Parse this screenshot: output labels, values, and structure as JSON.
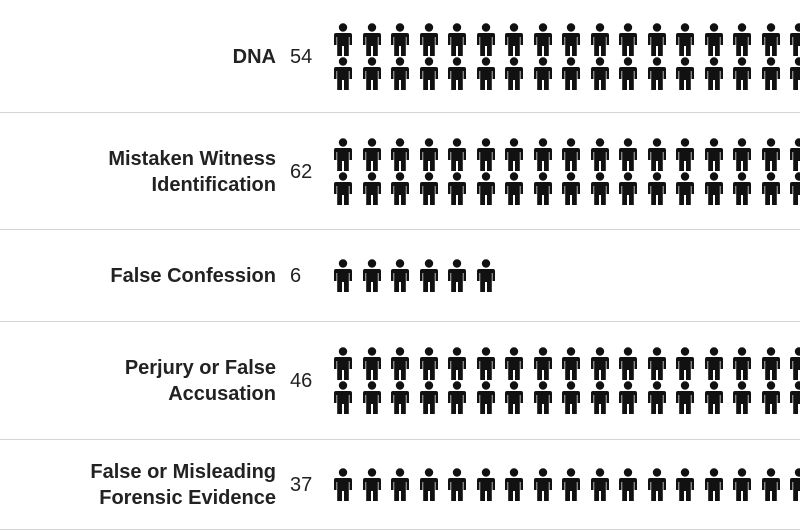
{
  "chart_data": {
    "type": "pictogram",
    "icon": "person-icon",
    "icon_color": "#111111",
    "categories": [
      "DNA",
      "Mistaken Witness Identification",
      "False Confession",
      "Perjury or False Accusation",
      "False or Misleading Forensic Evidence"
    ],
    "label_lines": [
      [
        "DNA"
      ],
      [
        "Mistaken Witness",
        "Identification"
      ],
      [
        "False Confession"
      ],
      [
        "Perjury or False",
        "Accusation"
      ],
      [
        "False or Misleading",
        "Forensic Evidence"
      ]
    ],
    "values": [
      54,
      62,
      6,
      46,
      37
    ],
    "value_labels": [
      "54",
      "62",
      "6",
      "46",
      "37"
    ]
  }
}
